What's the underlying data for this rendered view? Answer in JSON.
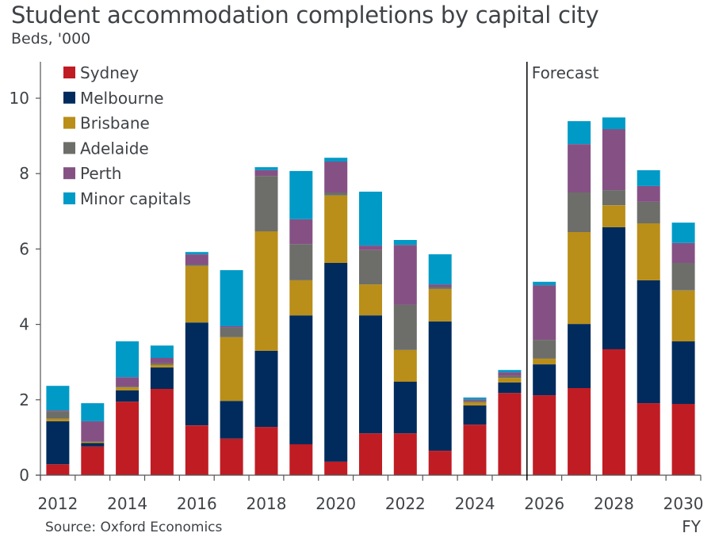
{
  "header": {
    "title": "Student accommodation completions by capital city",
    "subtitle": "Beds, '000"
  },
  "footer": {
    "source": "Source: Oxford Economics",
    "xunit": "FY"
  },
  "annotation": {
    "forecast_label": "Forecast",
    "forecast_starts_after": "2025"
  },
  "chart_data": {
    "type": "bar",
    "stacked": true,
    "title": "Student accommodation completions by capital city",
    "subtitle": "Beds, '000",
    "xlabel": "FY",
    "ylabel": "Beds, '000",
    "ylim": [
      0,
      11
    ],
    "yticks": [
      0,
      2,
      4,
      6,
      8,
      10
    ],
    "grid": false,
    "legend_position": "top-left",
    "categories": [
      "2012",
      "2013",
      "2014",
      "2015",
      "2016",
      "2017",
      "2018",
      "2019",
      "2020",
      "2021",
      "2022",
      "2023",
      "2024",
      "2025",
      "2026",
      "2027",
      "2028",
      "2029",
      "2030"
    ],
    "xtick_labels": [
      "2012",
      "2014",
      "2016",
      "2018",
      "2020",
      "2022",
      "2024",
      "2026",
      "2028",
      "2030"
    ],
    "series": [
      {
        "name": "Sydney",
        "color": "#C01C24",
        "values": [
          0.29,
          0.76,
          1.95,
          2.29,
          1.32,
          0.97,
          1.28,
          0.82,
          0.36,
          1.11,
          1.11,
          0.65,
          1.34,
          2.18,
          2.12,
          2.31,
          3.34,
          1.91,
          1.89
        ]
      },
      {
        "name": "Melbourne",
        "color": "#002B5C",
        "values": [
          1.14,
          0.09,
          0.3,
          0.57,
          2.73,
          1.0,
          2.02,
          3.42,
          5.27,
          3.13,
          1.37,
          3.43,
          0.51,
          0.28,
          0.82,
          1.7,
          3.24,
          3.26,
          1.66
        ]
      },
      {
        "name": "Brisbane",
        "color": "#B98E19",
        "values": [
          0.07,
          0.03,
          0.08,
          0.07,
          1.5,
          1.69,
          3.17,
          0.93,
          1.79,
          0.82,
          0.84,
          0.86,
          0.08,
          0.12,
          0.15,
          2.44,
          0.58,
          1.51,
          1.35
        ]
      },
      {
        "name": "Adelaide",
        "color": "#6D6E69",
        "values": [
          0.2,
          0.01,
          0.02,
          0.04,
          0.04,
          0.25,
          1.47,
          0.96,
          0.08,
          0.91,
          1.2,
          0.06,
          0.04,
          0.06,
          0.5,
          1.05,
          0.4,
          0.57,
          0.73
        ]
      },
      {
        "name": "Perth",
        "color": "#855184",
        "values": [
          0.02,
          0.54,
          0.25,
          0.14,
          0.27,
          0.04,
          0.15,
          0.66,
          0.82,
          0.12,
          1.59,
          0.06,
          0.04,
          0.09,
          1.45,
          1.28,
          1.62,
          0.42,
          0.53
        ]
      },
      {
        "name": "Minor capitals",
        "color": "#009AC7",
        "values": [
          0.65,
          0.48,
          0.95,
          0.33,
          0.06,
          1.49,
          0.08,
          1.28,
          0.1,
          1.43,
          0.13,
          0.8,
          0.05,
          0.06,
          0.09,
          0.61,
          0.31,
          0.42,
          0.54
        ]
      }
    ]
  }
}
